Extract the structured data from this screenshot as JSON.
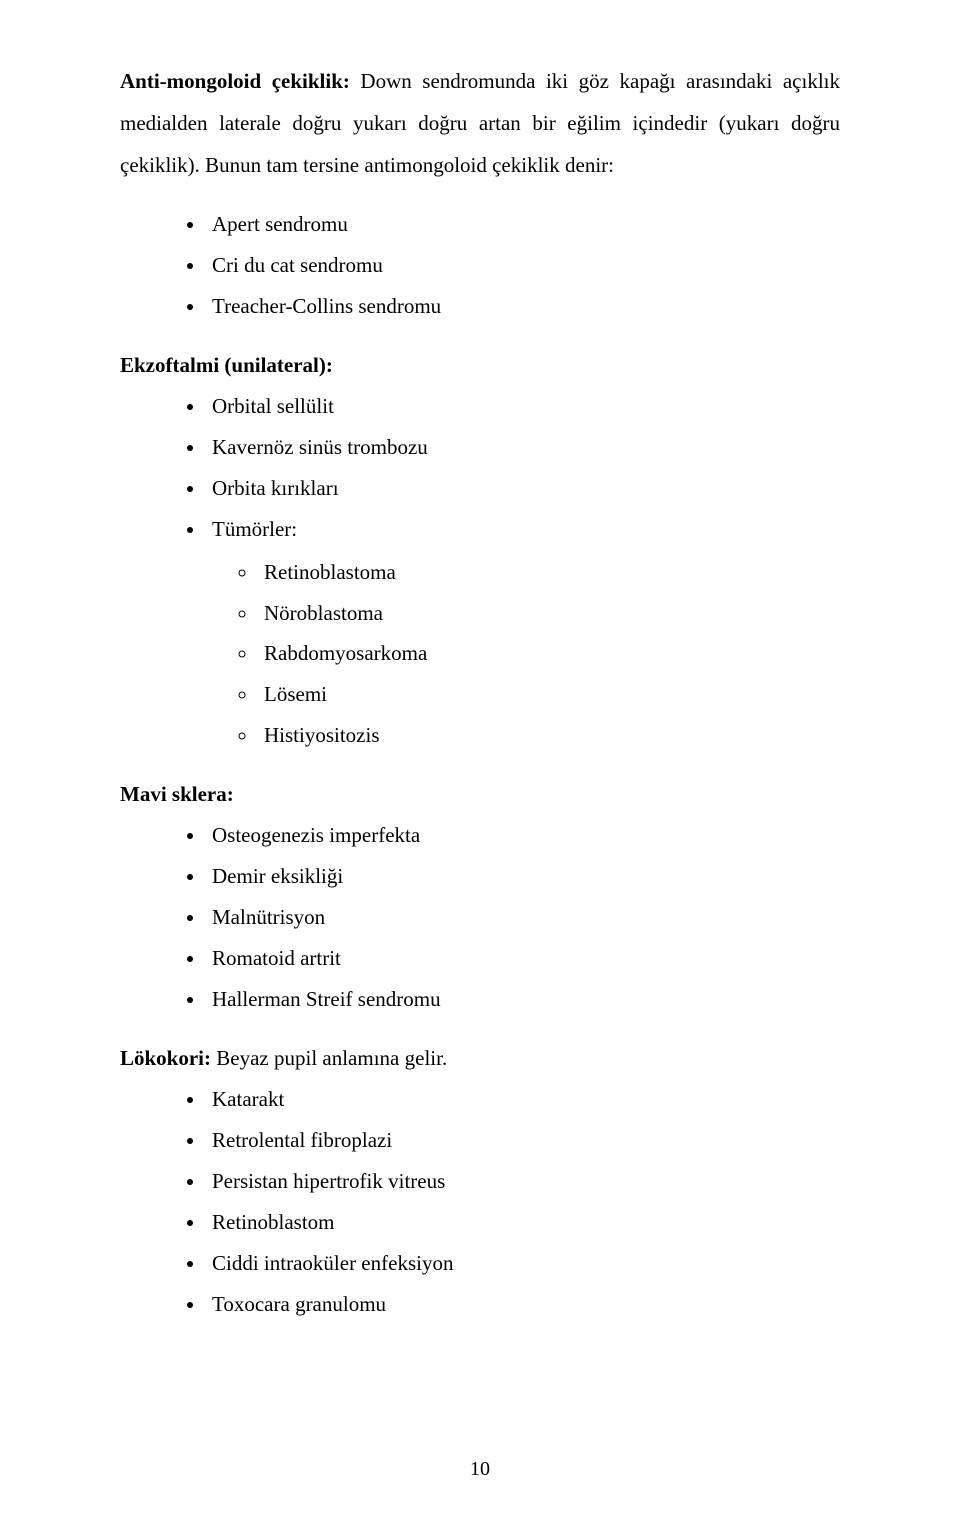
{
  "intro": {
    "bold_label": "Anti-mongoloid çekiklik:",
    "rest1": " Down sendromunda iki göz kapağı arasındaki açıklık medialden",
    "line2": "laterale doğru yukarı doğru artan bir eğilim içindedir (yukarı doğru çekiklik). Bunun tam",
    "line3": "tersine antimongoloid çekiklik denir:"
  },
  "list1": {
    "items": [
      "Apert sendromu",
      "Cri du cat sendromu",
      "Treacher-Collins sendromu"
    ]
  },
  "ekzoftalmi": {
    "title": "Ekzoftalmi (unilateral):",
    "items": [
      "Orbital sellülit",
      "Kavernöz sinüs trombozu",
      "Orbita kırıkları",
      "Tümörler:"
    ],
    "sub": [
      "Retinoblastoma",
      "Nöroblastoma",
      "Rabdomyosarkoma",
      "Lösemi",
      "Histiyositozis"
    ]
  },
  "mavi": {
    "title": "Mavi sklera:",
    "items": [
      "Osteogenezis imperfekta",
      "Demir eksikliği",
      "Malnütrisyon",
      "Romatoid artrit",
      "Hallerman Streif sendromu"
    ]
  },
  "lokokori": {
    "bold": "Lökokori:",
    "rest": " Beyaz pupil anlamına gelir.",
    "items": [
      "Katarakt",
      "Retrolental fibroplazi",
      "Persistan hipertrofik vitreus",
      "Retinoblastom",
      "Ciddi intraoküler enfeksiyon",
      "Toxocara granulomu"
    ]
  },
  "page_number": "10"
}
